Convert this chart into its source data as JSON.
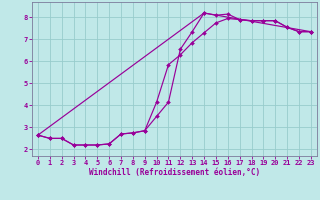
{
  "xlabel": "Windchill (Refroidissement éolien,°C)",
  "ylabel": "",
  "bg_color": "#c0e8e8",
  "grid_color": "#98cccc",
  "line_color": "#990099",
  "spine_color": "#7b7b9b",
  "xlim": [
    -0.5,
    23.5
  ],
  "ylim": [
    1.7,
    8.7
  ],
  "xticks": [
    0,
    1,
    2,
    3,
    4,
    5,
    6,
    7,
    8,
    9,
    10,
    11,
    12,
    13,
    14,
    15,
    16,
    17,
    18,
    19,
    20,
    21,
    22,
    23
  ],
  "yticks": [
    2,
    3,
    4,
    5,
    6,
    7,
    8
  ],
  "line1_x": [
    0,
    1,
    2,
    3,
    4,
    5,
    6,
    7,
    8,
    9,
    10,
    11,
    12,
    13,
    14,
    15,
    16,
    17,
    18,
    19,
    20,
    21,
    22,
    23
  ],
  "line1_y": [
    2.65,
    2.5,
    2.5,
    2.2,
    2.2,
    2.2,
    2.25,
    2.7,
    2.75,
    2.85,
    3.5,
    4.15,
    6.55,
    7.35,
    8.2,
    8.1,
    8.15,
    7.9,
    7.85,
    7.85,
    7.85,
    7.55,
    7.35,
    7.35
  ],
  "line2_x": [
    0,
    1,
    2,
    3,
    4,
    5,
    6,
    7,
    8,
    9,
    10,
    11,
    12,
    13,
    14,
    15,
    16,
    17,
    18,
    19,
    20,
    21,
    22,
    23
  ],
  "line2_y": [
    2.65,
    2.5,
    2.5,
    2.2,
    2.2,
    2.2,
    2.25,
    2.7,
    2.75,
    2.85,
    4.15,
    5.85,
    6.3,
    6.85,
    7.3,
    7.75,
    7.95,
    7.9,
    7.85,
    7.85,
    7.85,
    7.55,
    7.35,
    7.35
  ],
  "line3_x": [
    0,
    14,
    23
  ],
  "line3_y": [
    2.65,
    8.2,
    7.35
  ],
  "tick_fontsize": 5,
  "label_fontsize": 5.5
}
